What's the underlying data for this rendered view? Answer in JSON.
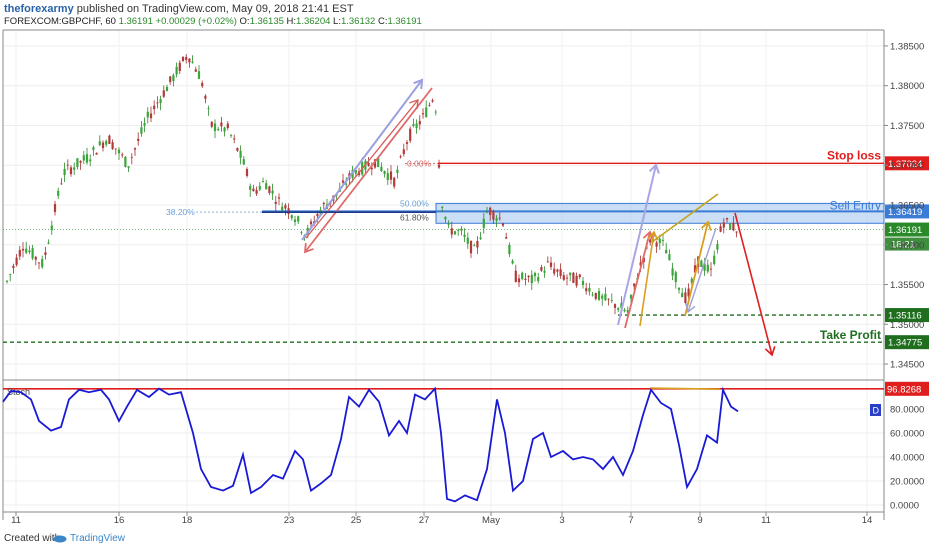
{
  "header": {
    "user": "theforexarmy",
    "published_text": " published on TradingView.com, May 09, 2018 21:41 EST",
    "symbol_line": "FOREXCOM:GBPCHF, 60 ",
    "price": "1.36191",
    "change": "+0.00029 (+0.02%)",
    "ohlc": [
      {
        "k": "O:",
        "v": "1.36135"
      },
      {
        "k": "H:",
        "v": "1.36204"
      },
      {
        "k": "L:",
        "v": "1.36132"
      },
      {
        "k": "C:",
        "v": "1.36191"
      }
    ]
  },
  "footer": {
    "created_with": "Created with",
    "brand": "TradingView"
  },
  "colors": {
    "up": "#2a8a2a",
    "down": "#a33030",
    "stop": "#e01e1e",
    "entry": "#3a7bd5",
    "tp": "#1e6e1e",
    "stoch": "#1a1ad6"
  },
  "chart_data": [
    {
      "type": "candlestick",
      "title": "FOREXCOM:GBPCHF, 60",
      "ylim": [
        1.344,
        1.3865
      ],
      "y_ticks": [
        "1.38500",
        "1.38000",
        "1.37500",
        "1.37000",
        "1.36500",
        "1.36000",
        "1.35500",
        "1.35000",
        "1.34500"
      ],
      "x_ticks": [
        "11",
        "16",
        "18",
        "23",
        "25",
        "27",
        "May",
        "3",
        "7",
        "9",
        "11",
        "14"
      ],
      "y_ticks_current_label": "1.36191",
      "countdown": "18:21",
      "series": [
        {
          "x": 0,
          "y": 1.3542
        },
        {
          "x": 20,
          "y": 1.36
        },
        {
          "x": 40,
          "y": 1.3575
        },
        {
          "x": 60,
          "y": 1.369
        },
        {
          "x": 85,
          "y": 1.371
        },
        {
          "x": 105,
          "y": 1.3735
        },
        {
          "x": 125,
          "y": 1.37
        },
        {
          "x": 145,
          "y": 1.376
        },
        {
          "x": 165,
          "y": 1.38
        },
        {
          "x": 185,
          "y": 1.384
        },
        {
          "x": 198,
          "y": 1.381
        },
        {
          "x": 208,
          "y": 1.375
        },
        {
          "x": 225,
          "y": 1.3745
        },
        {
          "x": 240,
          "y": 1.3705
        },
        {
          "x": 250,
          "y": 1.3665
        },
        {
          "x": 262,
          "y": 1.368
        },
        {
          "x": 275,
          "y": 1.3655
        },
        {
          "x": 290,
          "y": 1.364
        },
        {
          "x": 303,
          "y": 1.3612
        },
        {
          "x": 318,
          "y": 1.3645
        },
        {
          "x": 332,
          "y": 1.366
        },
        {
          "x": 350,
          "y": 1.369
        },
        {
          "x": 372,
          "y": 1.3705
        },
        {
          "x": 392,
          "y": 1.368
        },
        {
          "x": 405,
          "y": 1.3735
        },
        {
          "x": 420,
          "y": 1.376
        },
        {
          "x": 432,
          "y": 1.379
        },
        {
          "x": 438,
          "y": 1.366
        },
        {
          "x": 445,
          "y": 1.362
        },
        {
          "x": 458,
          "y": 1.3615
        },
        {
          "x": 472,
          "y": 1.359
        },
        {
          "x": 485,
          "y": 1.3645
        },
        {
          "x": 500,
          "y": 1.363
        },
        {
          "x": 512,
          "y": 1.356
        },
        {
          "x": 530,
          "y": 1.3555
        },
        {
          "x": 545,
          "y": 1.3575
        },
        {
          "x": 560,
          "y": 1.356
        },
        {
          "x": 578,
          "y": 1.3555
        },
        {
          "x": 595,
          "y": 1.3535
        },
        {
          "x": 612,
          "y": 1.3525
        },
        {
          "x": 625,
          "y": 1.3515
        },
        {
          "x": 635,
          "y": 1.3565
        },
        {
          "x": 648,
          "y": 1.361
        },
        {
          "x": 662,
          "y": 1.3598
        },
        {
          "x": 672,
          "y": 1.356
        },
        {
          "x": 684,
          "y": 1.353
        },
        {
          "x": 695,
          "y": 1.358
        },
        {
          "x": 708,
          "y": 1.3565
        },
        {
          "x": 720,
          "y": 1.363
        },
        {
          "x": 735,
          "y": 1.3619
        }
      ],
      "levels": [
        {
          "name": "Stop loss",
          "value": 1.37024,
          "label": "1.37024",
          "color": "#e01e1e"
        },
        {
          "name": "Sell Entry",
          "value": 1.36419,
          "label": "1.36419",
          "color": "#3a7bd5"
        },
        {
          "name": "",
          "value": 1.35116,
          "label": "1.35116",
          "color": "#1e6e1e"
        },
        {
          "name": "Take Profit",
          "value": 1.34775,
          "label": "1.34775",
          "color": "#1e6e1e"
        }
      ],
      "fib_labels": [
        "0.00%",
        "50.00%",
        "61.80%",
        "38.20%"
      ],
      "annotations": [
        "Stop loss",
        "Sell Entry",
        "Take Profit"
      ]
    },
    {
      "type": "line",
      "title": "Stoch",
      "ylim": [
        0,
        100
      ],
      "y_ticks": [
        "96.8268",
        "80.0000",
        "60.0000",
        "40.0000",
        "20.0000",
        "0.0000"
      ],
      "level": 96.8268,
      "indicator_badge": "D",
      "series": [
        {
          "name": "",
          "points": [
            [
              0,
              86
            ],
            [
              8,
              95
            ],
            [
              18,
              94
            ],
            [
              28,
              88
            ],
            [
              36,
              70
            ],
            [
              48,
              62
            ],
            [
              58,
              65
            ],
            [
              66,
              88
            ],
            [
              76,
              96
            ],
            [
              86,
              94
            ],
            [
              98,
              96
            ],
            [
              106,
              88
            ],
            [
              116,
              70
            ],
            [
              124,
              82
            ],
            [
              134,
              96
            ],
            [
              146,
              90
            ],
            [
              156,
              97
            ],
            [
              166,
              92
            ],
            [
              178,
              94
            ],
            [
              190,
              60
            ],
            [
              198,
              30
            ],
            [
              208,
              15
            ],
            [
              220,
              12
            ],
            [
              230,
              16
            ],
            [
              240,
              42
            ],
            [
              248,
              10
            ],
            [
              258,
              15
            ],
            [
              270,
              25
            ],
            [
              280,
              22
            ],
            [
              292,
              45
            ],
            [
              300,
              38
            ],
            [
              308,
              12
            ],
            [
              318,
              18
            ],
            [
              328,
              25
            ],
            [
              338,
              55
            ],
            [
              346,
              90
            ],
            [
              356,
              82
            ],
            [
              366,
              96
            ],
            [
              376,
              86
            ],
            [
              386,
              58
            ],
            [
              396,
              70
            ],
            [
              404,
              60
            ],
            [
              412,
              92
            ],
            [
              422,
              88
            ],
            [
              432,
              97
            ],
            [
              438,
              60
            ],
            [
              444,
              5
            ],
            [
              452,
              3
            ],
            [
              462,
              8
            ],
            [
              474,
              4
            ],
            [
              484,
              30
            ],
            [
              494,
              88
            ],
            [
              502,
              60
            ],
            [
              510,
              12
            ],
            [
              520,
              20
            ],
            [
              530,
              55
            ],
            [
              540,
              60
            ],
            [
              548,
              40
            ],
            [
              560,
              45
            ],
            [
              570,
              38
            ],
            [
              580,
              40
            ],
            [
              590,
              38
            ],
            [
              600,
              30
            ],
            [
              610,
              40
            ],
            [
              620,
              25
            ],
            [
              630,
              45
            ],
            [
              640,
              75
            ],
            [
              648,
              96
            ],
            [
              658,
              85
            ],
            [
              668,
              80
            ],
            [
              676,
              50
            ],
            [
              684,
              15
            ],
            [
              694,
              30
            ],
            [
              704,
              58
            ],
            [
              714,
              52
            ],
            [
              720,
              96
            ],
            [
              728,
              82
            ],
            [
              735,
              78
            ]
          ]
        }
      ]
    }
  ]
}
